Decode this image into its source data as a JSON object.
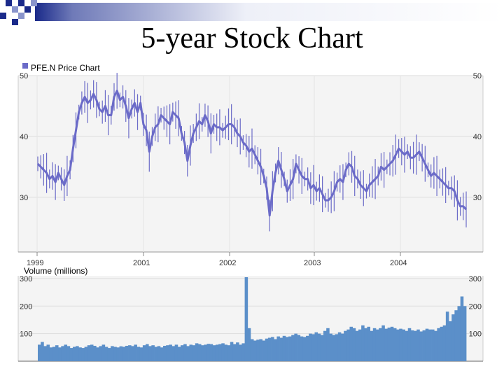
{
  "slide": {
    "title": "5-year Stock Chart"
  },
  "colors": {
    "price_line": "#6b6bc8",
    "volume_bar": "#5b8fc9",
    "grid": "#dddddd",
    "plot_bg": "#f4f4f4",
    "legend_square": "#6b6bc8"
  },
  "chart_data": [
    {
      "type": "line",
      "title": "PFE.N Price Chart",
      "x_tick_labels": [
        "1999",
        "2001",
        "2002",
        "2003",
        "2004"
      ],
      "y_ticks": [
        30,
        40,
        50
      ],
      "y_tick_labels": [
        "30",
        "40",
        "50"
      ],
      "ylim": [
        21,
        50
      ],
      "grid": true,
      "series": [
        {
          "values": [
            35.5,
            35,
            34.5,
            34,
            33,
            33.5,
            32.5,
            34,
            33,
            32,
            33.5,
            34.5,
            38,
            41,
            44,
            45.5,
            46.5,
            45.5,
            46,
            47,
            46,
            44.5,
            44,
            45,
            43.5,
            43.5,
            46.5,
            47.5,
            46,
            46.5,
            45,
            43,
            44.5,
            45.5,
            44,
            45.5,
            42,
            41,
            37.5,
            40,
            41.5,
            42,
            43.5,
            43,
            42.5,
            42,
            44,
            43.5,
            43,
            40.5,
            39,
            36,
            38.5,
            40.5,
            41.5,
            42.5,
            42,
            43.5,
            42.5,
            40.5,
            42,
            41.5,
            41.5,
            41,
            41.5,
            42,
            42,
            41.5,
            40.5,
            40,
            39,
            38.5,
            37.5,
            38,
            37,
            36,
            35,
            33.5,
            31.5,
            27,
            31,
            34,
            36,
            34.5,
            33,
            31,
            32,
            33,
            35.5,
            34.5,
            33.5,
            33,
            33,
            31.5,
            32,
            31,
            31.5,
            30.5,
            29.5,
            29.5,
            30,
            31,
            32.5,
            33,
            32.5,
            34.5,
            35.5,
            35,
            33.5,
            33,
            32,
            31.5,
            31,
            32,
            32.5,
            33,
            33.5,
            35,
            34.5,
            35,
            35.5,
            36,
            37,
            38,
            37.5,
            37,
            37.5,
            36.5,
            36.5,
            37,
            37.5,
            36.5,
            35.5,
            34.5,
            33.5,
            34,
            33.5,
            33,
            32.5,
            32,
            31.5,
            31.5,
            31,
            29.5,
            28.5,
            28.5,
            28
          ]
        }
      ]
    },
    {
      "type": "bar",
      "title": "Volume (millions)",
      "y_ticks": [
        100,
        200,
        300
      ],
      "y_tick_labels": [
        "100",
        "200",
        "300"
      ],
      "ylim": [
        0,
        310
      ],
      "grid": true,
      "series": [
        {
          "values": [
            60,
            70,
            55,
            60,
            50,
            52,
            58,
            50,
            55,
            60,
            55,
            48,
            52,
            55,
            50,
            48,
            52,
            58,
            60,
            56,
            50,
            55,
            60,
            52,
            48,
            55,
            52,
            50,
            54,
            52,
            56,
            58,
            55,
            60,
            52,
            50,
            58,
            62,
            55,
            58,
            52,
            55,
            50,
            56,
            58,
            60,
            55,
            60,
            52,
            58,
            62,
            55,
            60,
            58,
            65,
            62,
            58,
            60,
            63,
            62,
            58,
            60,
            62,
            65,
            60,
            58,
            70,
            62,
            68,
            60,
            65,
            305,
            120,
            80,
            75,
            78,
            80,
            75,
            82,
            85,
            88,
            80,
            90,
            85,
            92,
            88,
            90,
            95,
            100,
            95,
            90,
            88,
            92,
            100,
            98,
            105,
            100,
            95,
            110,
            120,
            100,
            95,
            98,
            105,
            100,
            110,
            115,
            125,
            120,
            110,
            115,
            130,
            120,
            125,
            110,
            120,
            115,
            120,
            130,
            118,
            122,
            125,
            120,
            115,
            118,
            115,
            110,
            120,
            112,
            110,
            115,
            108,
            112,
            118,
            115,
            115,
            110,
            120,
            125,
            130,
            180,
            145,
            170,
            185,
            200,
            235,
            200
          ]
        }
      ]
    }
  ]
}
